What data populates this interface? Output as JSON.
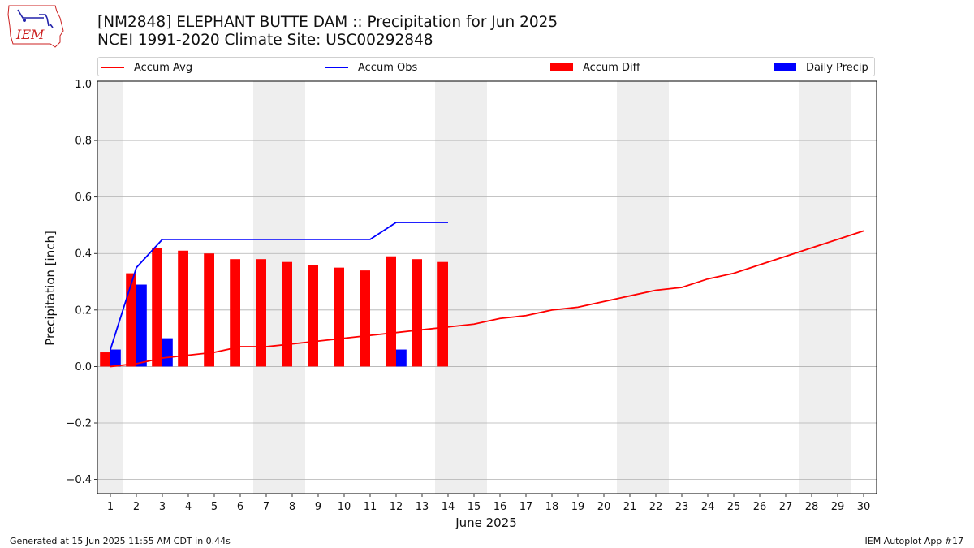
{
  "title": "[NM2848] ELEPHANT BUTTE DAM :: Precipitation for Jun 2025",
  "subtitle": "NCEI 1991-2020 Climate Site: USC00292848",
  "logo_text": "IEM",
  "legend": {
    "accum_avg": "Accum Avg",
    "accum_obs": "Accum Obs",
    "accum_diff": "Accum Diff",
    "daily_precip": "Daily Precip"
  },
  "footer": {
    "left": "Generated at 15 Jun 2025 11:55 AM CDT in 0.44s",
    "right": "IEM Autoplot App #17"
  },
  "colors": {
    "accum_avg": "#ff0000",
    "accum_obs": "#0000ff",
    "accum_diff": "#ff0000",
    "daily_precip": "#0000ff",
    "weekend_shade": "#eeeeee",
    "grid": "#b0b0b0"
  },
  "chart_data": {
    "type": "bar",
    "xlabel": "June 2025",
    "ylabel": "Precipitation [inch]",
    "ylim": [
      -0.45,
      1.01
    ],
    "yticks": [
      -0.4,
      -0.2,
      0.0,
      0.2,
      0.4,
      0.6,
      0.8,
      1.0
    ],
    "ytick_labels": [
      "−0.4",
      "−0.2",
      "0.0",
      "0.2",
      "0.4",
      "0.6",
      "0.8",
      "1.0"
    ],
    "xlim": [
      0.5,
      30.5
    ],
    "days": [
      1,
      2,
      3,
      4,
      5,
      6,
      7,
      8,
      9,
      10,
      11,
      12,
      13,
      14,
      15,
      16,
      17,
      18,
      19,
      20,
      21,
      22,
      23,
      24,
      25,
      26,
      27,
      28,
      29,
      30
    ],
    "weekend_days": [
      1,
      7,
      8,
      14,
      15,
      21,
      22,
      28,
      29
    ],
    "grid": "y",
    "legend_position": "top",
    "series": [
      {
        "name": "Accum Avg",
        "kind": "line",
        "x": [
          1,
          2,
          3,
          4,
          5,
          6,
          7,
          8,
          9,
          10,
          11,
          12,
          13,
          14,
          15,
          16,
          17,
          18,
          19,
          20,
          21,
          22,
          23,
          24,
          25,
          26,
          27,
          28,
          29,
          30
        ],
        "values": [
          0.0,
          0.01,
          0.03,
          0.04,
          0.05,
          0.07,
          0.07,
          0.08,
          0.09,
          0.1,
          0.11,
          0.12,
          0.13,
          0.14,
          0.15,
          0.17,
          0.18,
          0.2,
          0.21,
          0.23,
          0.25,
          0.27,
          0.28,
          0.31,
          0.33,
          0.36,
          0.39,
          0.42,
          0.45,
          0.48
        ]
      },
      {
        "name": "Accum Obs",
        "kind": "line",
        "x": [
          1,
          2,
          3,
          4,
          5,
          6,
          7,
          8,
          9,
          10,
          11,
          12,
          13,
          14
        ],
        "values": [
          0.06,
          0.35,
          0.45,
          0.45,
          0.45,
          0.45,
          0.45,
          0.45,
          0.45,
          0.45,
          0.45,
          0.51,
          0.51,
          0.51
        ]
      },
      {
        "name": "Accum Diff",
        "kind": "bar",
        "x": [
          1,
          2,
          3,
          4,
          5,
          6,
          7,
          8,
          9,
          10,
          11,
          12,
          13,
          14
        ],
        "values": [
          0.05,
          0.33,
          0.42,
          0.41,
          0.4,
          0.38,
          0.38,
          0.37,
          0.36,
          0.35,
          0.34,
          0.39,
          0.38,
          0.37
        ]
      },
      {
        "name": "Daily Precip",
        "kind": "bar",
        "x": [
          1,
          2,
          3,
          4,
          5,
          6,
          7,
          8,
          9,
          10,
          11,
          12,
          13,
          14
        ],
        "values": [
          0.06,
          0.29,
          0.1,
          0,
          0,
          0,
          0,
          0,
          0,
          0,
          0,
          0.06,
          0,
          0
        ]
      }
    ]
  }
}
